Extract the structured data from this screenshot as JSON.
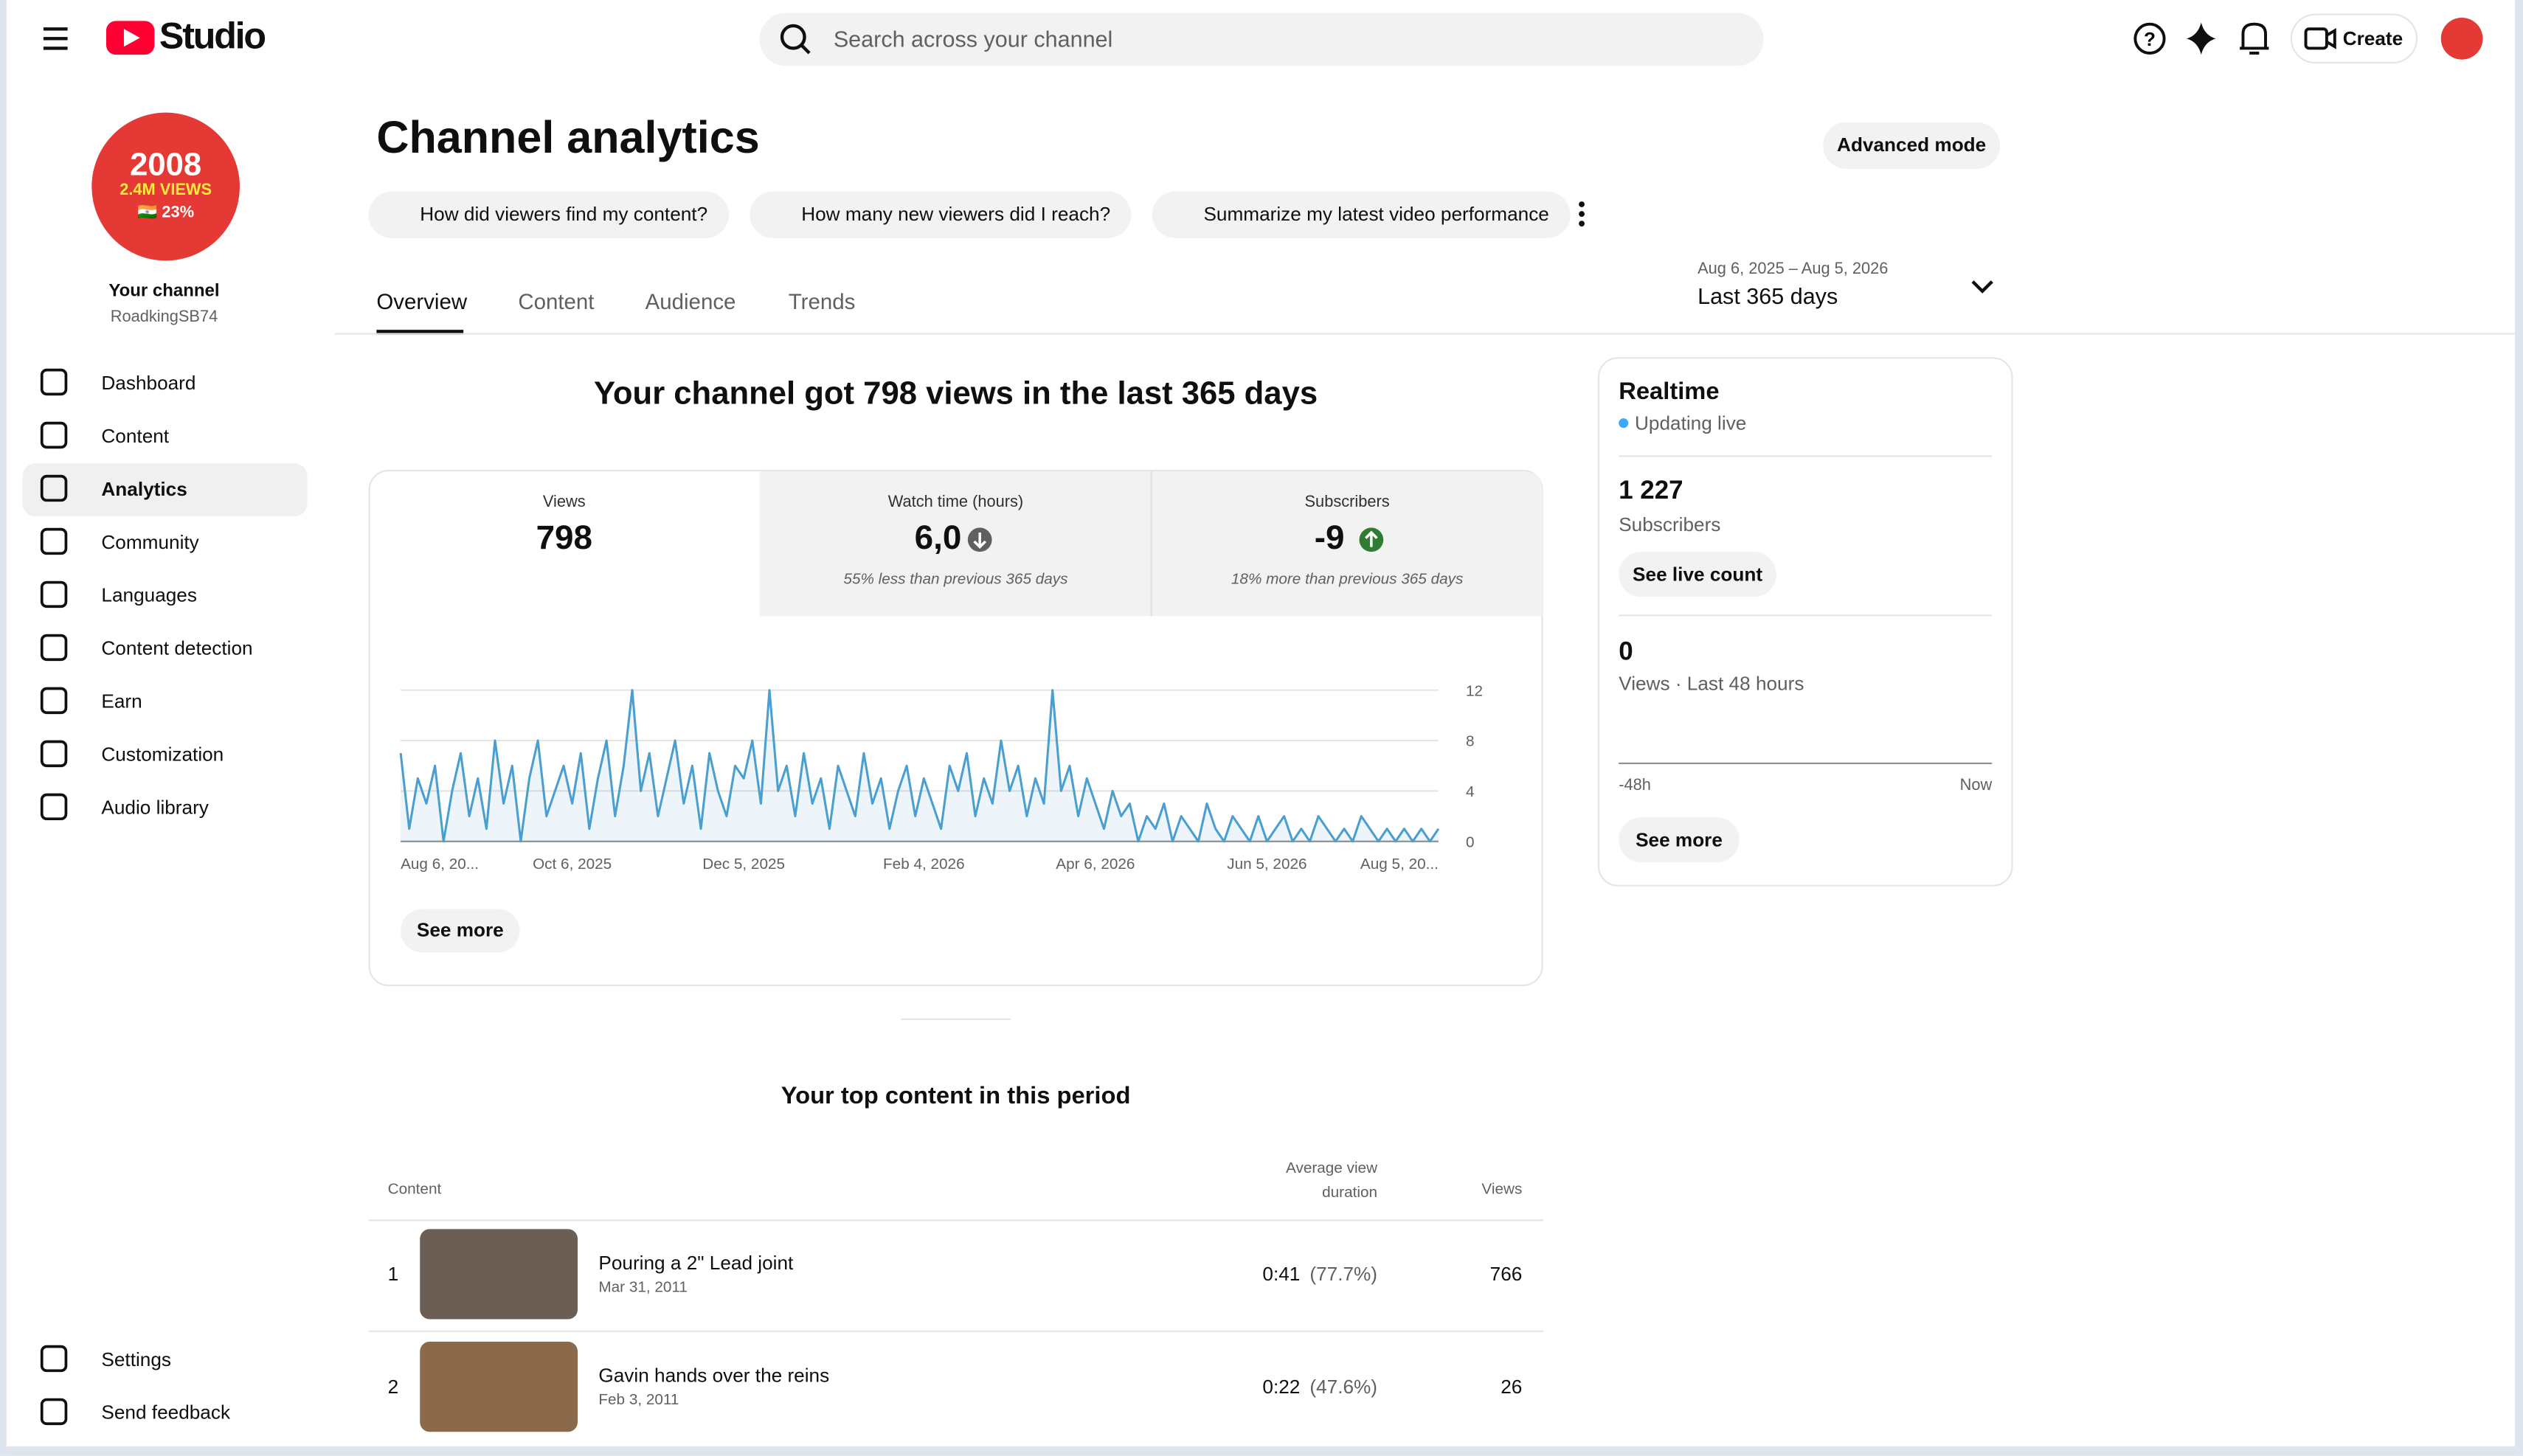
{
  "header": {
    "logo": "Studio",
    "search_placeholder": "Search across your channel",
    "create": "Create"
  },
  "sidebar": {
    "avatar_text": [
      "2008",
      "2.4M VIEWS",
      "🇮🇳 23%"
    ],
    "channel_label": "Your channel",
    "channel_name": "RoadkingSB74",
    "nav": [
      "Dashboard",
      "Content",
      "Analytics",
      "Community",
      "Languages",
      "Content detection",
      "Earn",
      "Customization",
      "Audio library"
    ],
    "bottom": [
      "Settings",
      "Send feedback"
    ]
  },
  "main": {
    "title": "Channel analytics",
    "advanced": "Advanced mode",
    "prompts": [
      "How did viewers find my content?",
      "How many new viewers did I reach?",
      "Summarize my latest video performance"
    ],
    "tabs": [
      "Overview",
      "Content",
      "Audience",
      "Trends"
    ],
    "date_range": "Aug 6, 2025 – Aug 5, 2026",
    "period": "Last 365 days",
    "headline": "Your channel got 798 views in the last 365 days",
    "kpis": [
      {
        "label": "Views",
        "value": "798"
      },
      {
        "label": "Watch time (hours)",
        "value": "6,0",
        "note": "55% less than previous 365 days"
      },
      {
        "label": "Subscribers",
        "value": "-9",
        "note": "18% more than previous 365 days"
      }
    ],
    "see_more": "See more",
    "top_title": "Your top content in this period",
    "table": {
      "columns": [
        "Content",
        "Average view duration",
        "Views"
      ],
      "rows": [
        {
          "rank": 1,
          "title": "Pouring a 2\" Lead joint",
          "date": "Mar 31, 2011",
          "duration": "0:41",
          "percent": "(77.7%)",
          "views": 766
        },
        {
          "rank": 2,
          "title": "Gavin hands over the reins",
          "date": "Feb 3, 2011",
          "duration": "0:22",
          "percent": "(47.6%)",
          "views": 26
        }
      ]
    }
  },
  "chart_data": {
    "type": "line",
    "categories": [
      "Aug 6, 20...",
      null,
      null,
      null,
      null,
      null,
      null,
      null,
      null,
      null,
      null,
      null,
      null,
      null,
      null,
      null,
      null,
      null,
      null,
      null,
      "Oct 6, 2025",
      null,
      null,
      null,
      null,
      null,
      null,
      null,
      null,
      null,
      null,
      null,
      null,
      null,
      null,
      null,
      null,
      null,
      null,
      null,
      "Dec 5, 2025",
      null,
      null,
      null,
      null,
      null,
      null,
      null,
      null,
      null,
      null,
      null,
      null,
      null,
      null,
      null,
      null,
      null,
      null,
      null,
      null,
      "Feb 4, 2026",
      null,
      null,
      null,
      null,
      null,
      null,
      null,
      null,
      null,
      null,
      null,
      null,
      null,
      null,
      null,
      null,
      null,
      null,
      null,
      "Apr 6, 2026",
      null,
      null,
      null,
      null,
      null,
      null,
      null,
      null,
      null,
      null,
      null,
      null,
      null,
      null,
      null,
      null,
      null,
      null,
      null,
      "Jun 5, 2026",
      null,
      null,
      null,
      null,
      null,
      null,
      null,
      null,
      null,
      null,
      null,
      null,
      null,
      null,
      null,
      null,
      null,
      null,
      null,
      "Aug 5, 20..."
    ],
    "series": [
      {
        "name": "Views",
        "color": "#4a9fd0",
        "values": [
          7,
          1,
          5,
          3,
          6,
          0,
          4,
          7,
          2,
          5,
          1,
          8,
          3,
          6,
          0,
          5,
          8,
          2,
          4,
          6,
          3,
          7,
          1,
          5,
          8,
          2,
          6,
          12,
          4,
          7,
          2,
          5,
          8,
          3,
          6,
          1,
          7,
          4,
          2,
          6,
          5,
          8,
          3,
          12,
          4,
          6,
          2,
          7,
          3,
          5,
          1,
          6,
          4,
          2,
          7,
          3,
          5,
          1,
          4,
          6,
          2,
          5,
          3,
          1,
          6,
          4,
          7,
          2,
          5,
          3,
          8,
          4,
          6,
          2,
          5,
          3,
          12,
          4,
          6,
          2,
          5,
          3,
          1,
          4,
          2,
          3,
          0,
          2,
          1,
          3,
          0,
          2,
          1,
          0,
          3,
          1,
          0,
          2,
          1,
          0,
          2,
          0,
          1,
          2,
          0,
          1,
          0,
          2,
          1,
          0,
          1,
          0,
          2,
          1,
          0,
          1,
          0,
          1,
          0,
          1,
          0,
          1
        ]
      }
    ],
    "ylim": [
      0,
      12
    ],
    "yticks": [
      0,
      4,
      8,
      12
    ],
    "grid": true
  },
  "realtime": {
    "title": "Realtime",
    "status": "Updating live",
    "subscribers": "1 227",
    "subscribers_label": "Subscribers",
    "live_count_button": "See live count",
    "views": 0,
    "views_label": "Views · Last 48 hours",
    "axis": [
      "-48h",
      "Now"
    ],
    "see_more": "See more"
  }
}
